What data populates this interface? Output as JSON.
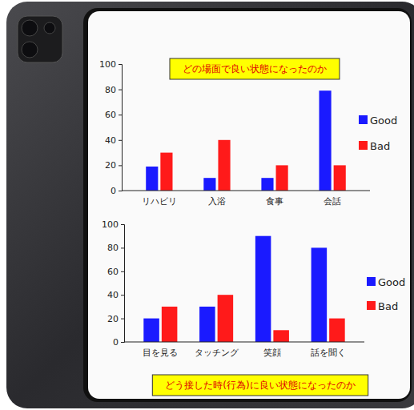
{
  "chart_data": [
    {
      "type": "bar",
      "title": "どの場面で良い状態になったのか",
      "categories": [
        "リハビリ",
        "入浴",
        "食事",
        "会話"
      ],
      "series": [
        {
          "name": "Good",
          "color": "#1a1aff",
          "values": [
            19,
            10,
            10,
            79
          ]
        },
        {
          "name": "Bad",
          "color": "#ff1a1a",
          "values": [
            30,
            40,
            20,
            20
          ]
        }
      ],
      "ylim": [
        0,
        100
      ],
      "yticks": [
        0,
        20,
        40,
        60,
        80,
        100
      ],
      "grid": false,
      "legend": "right"
    },
    {
      "type": "bar",
      "title": "どう接した時(行為)に良い状態になったのか",
      "categories": [
        "目を見る",
        "タッチング",
        "笑顔",
        "話を聞く"
      ],
      "series": [
        {
          "name": "Good",
          "color": "#1a1aff",
          "values": [
            20,
            30,
            90,
            80
          ]
        },
        {
          "name": "Bad",
          "color": "#ff1a1a",
          "values": [
            30,
            40,
            10,
            20
          ]
        }
      ],
      "ylim": [
        0,
        100
      ],
      "yticks": [
        0,
        20,
        40,
        60,
        80,
        100
      ],
      "grid": false,
      "legend": "right"
    }
  ]
}
